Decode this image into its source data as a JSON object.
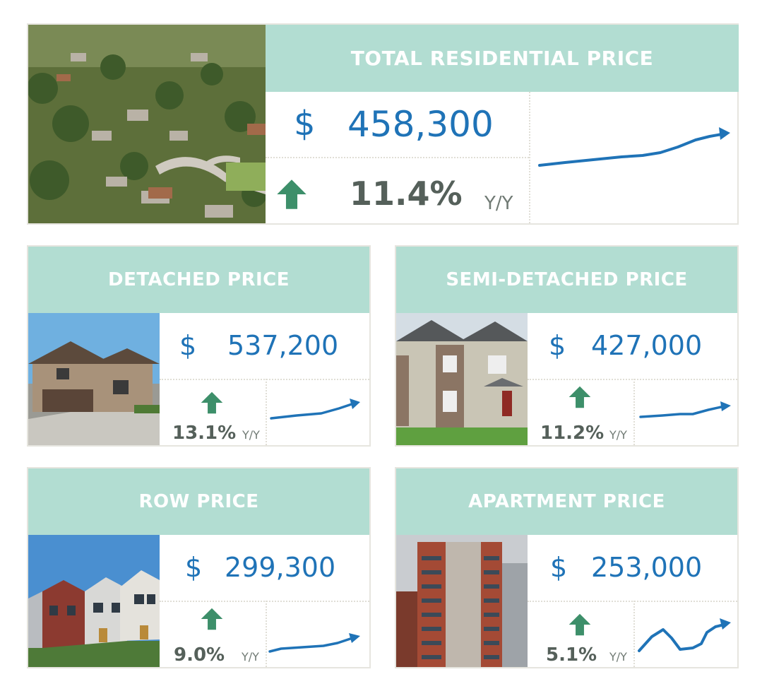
{
  "total": {
    "title": "TOTAL RESIDENTIAL PRICE",
    "currency": "$",
    "price": "458,300",
    "change": "11.4%",
    "change_direction": "up",
    "period": "Y/Y",
    "photo": "aerial-neighbourhood-photo"
  },
  "detached": {
    "title": "DETACHED PRICE",
    "currency": "$",
    "price": "537,200",
    "change": "13.1%",
    "change_direction": "up",
    "period": "Y/Y",
    "photo": "detached-house-photo"
  },
  "semi": {
    "title": "SEMI-DETACHED PRICE",
    "currency": "$",
    "price": "427,000",
    "change": "11.2%",
    "change_direction": "up",
    "period": "Y/Y",
    "photo": "semi-detached-house-photo"
  },
  "row": {
    "title": "ROW PRICE",
    "currency": "$",
    "price": "299,300",
    "change": "9.0%",
    "change_direction": "up",
    "period": "Y/Y",
    "photo": "row-houses-photo"
  },
  "apartment": {
    "title": "APARTMENT PRICE",
    "currency": "$",
    "price": "253,000",
    "change": "5.1%",
    "change_direction": "up",
    "period": "Y/Y",
    "photo": "apartment-tower-photo"
  },
  "colors": {
    "header_bg": "#b2ddd2",
    "price_blue": "#1f73b7",
    "arrow_green": "#3d8f6a",
    "percent_gray": "#55605a"
  }
}
